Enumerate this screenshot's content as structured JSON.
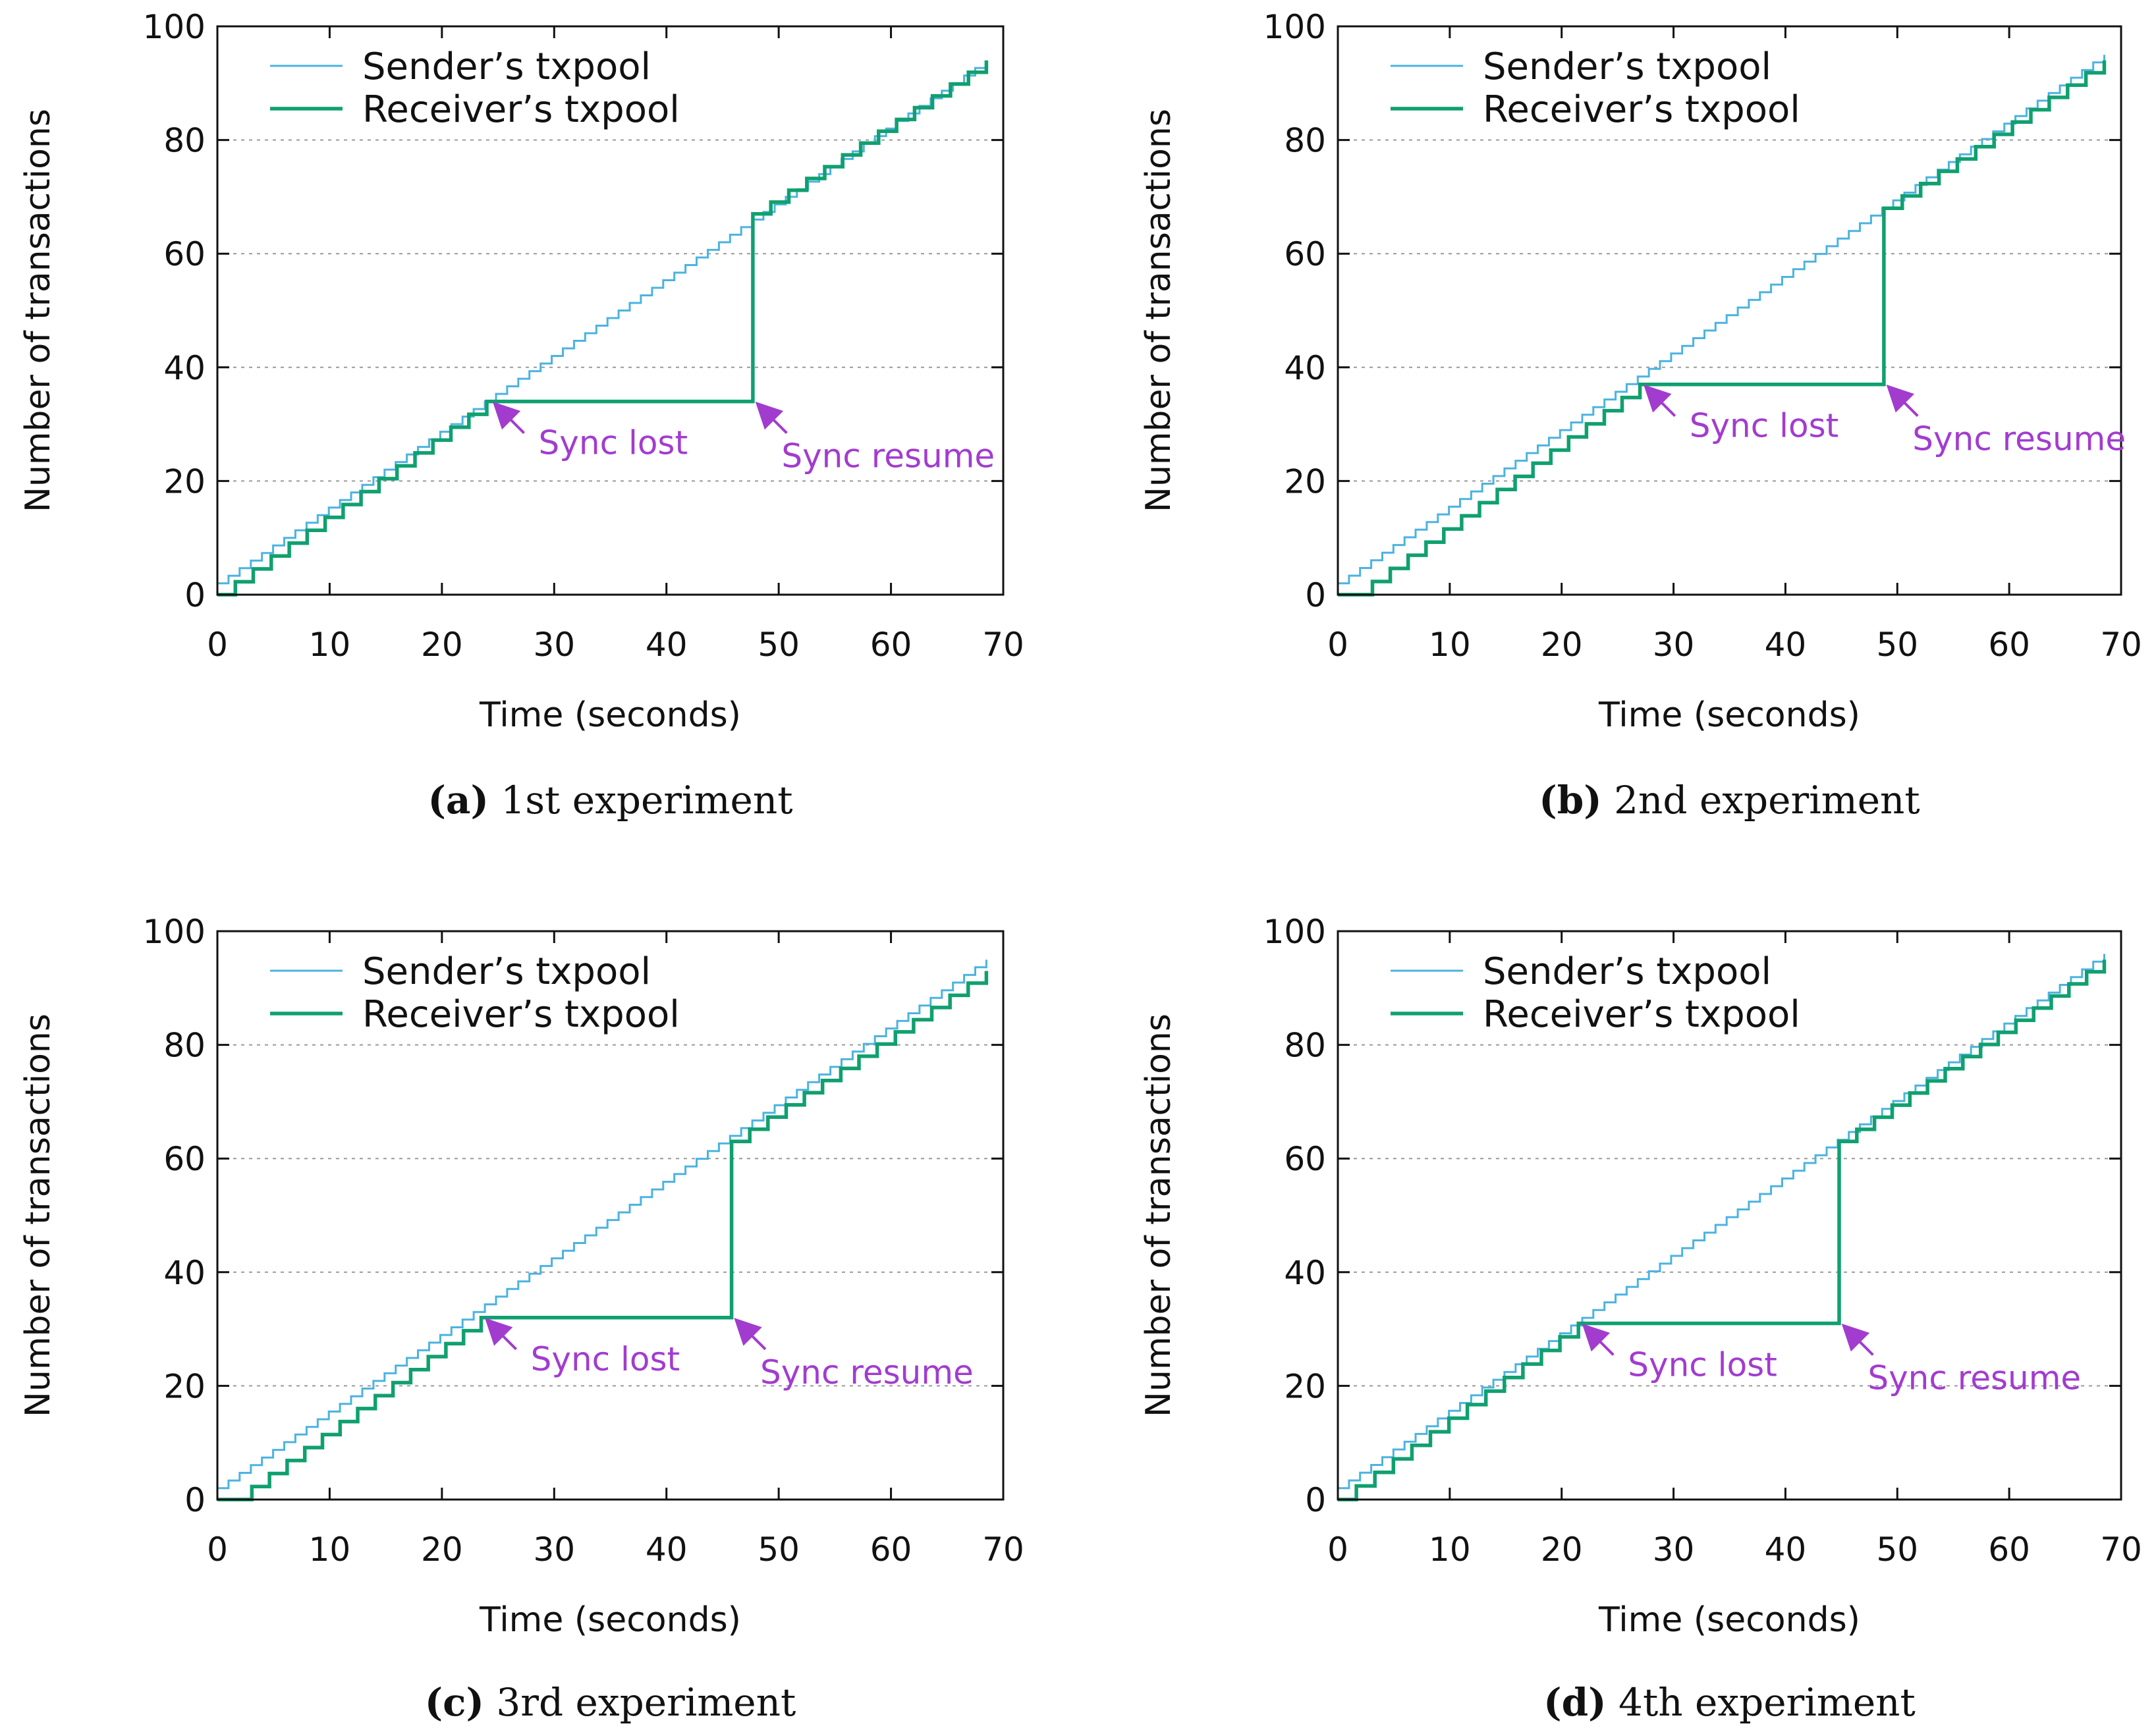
{
  "colors": {
    "sender": "#4bb3e0",
    "receiver": "#10a070",
    "annotation": "#a23ccf",
    "grid": "#9a9a9a",
    "axis": "#111111"
  },
  "legend": {
    "sender_label": "Sender’s txpool",
    "receiver_label": "Receiver’s txpool"
  },
  "chart_data": [
    {
      "type": "line",
      "subtitle_letter": "(a)",
      "subtitle_text": " 1st experiment",
      "xlabel": "Time (seconds)",
      "ylabel": "Number of transactions",
      "xlim": [
        0,
        70
      ],
      "ylim": [
        0,
        100
      ],
      "xticks": [
        0,
        10,
        20,
        30,
        40,
        50,
        60,
        70
      ],
      "yticks": [
        0,
        20,
        40,
        60,
        80,
        100
      ],
      "grid": "horizontal dashed",
      "legend_position": "top-left",
      "series": [
        {
          "name": "Sender’s txpool",
          "step": true,
          "x": [
            0,
            68.5
          ],
          "y": [
            2,
            94
          ]
        },
        {
          "name": "Receiver’s txpool",
          "step": true,
          "x": [
            0,
            24,
            24,
            47.7,
            47.7,
            68.5
          ],
          "y": [
            0,
            34,
            34,
            34,
            67,
            94
          ]
        }
      ],
      "annotations": [
        {
          "text": "Sync lost",
          "x": 24.5,
          "y": 34
        },
        {
          "text": "Sync resume",
          "x": 47.9,
          "y": 34
        }
      ]
    },
    {
      "type": "line",
      "subtitle_letter": "(b)",
      "subtitle_text": " 2nd experiment",
      "xlabel": "Time (seconds)",
      "ylabel": "Number of transactions",
      "xlim": [
        0,
        70
      ],
      "ylim": [
        0,
        100
      ],
      "xticks": [
        0,
        10,
        20,
        30,
        40,
        50,
        60,
        70
      ],
      "yticks": [
        0,
        20,
        40,
        60,
        80,
        100
      ],
      "grid": "horizontal dashed",
      "legend_position": "top-left",
      "series": [
        {
          "name": "Sender’s txpool",
          "step": true,
          "x": [
            0,
            68.5
          ],
          "y": [
            2,
            95
          ]
        },
        {
          "name": "Receiver’s txpool",
          "step": true,
          "x": [
            0,
            1.5,
            27,
            27,
            48.8,
            48.8,
            68.5
          ],
          "y": [
            0,
            0,
            37,
            37,
            37,
            68,
            94
          ]
        }
      ],
      "annotations": [
        {
          "text": "Sync lost",
          "x": 27.3,
          "y": 37
        },
        {
          "text": "Sync resume",
          "x": 49,
          "y": 37
        }
      ]
    },
    {
      "type": "line",
      "subtitle_letter": "(c)",
      "subtitle_text": " 3rd experiment",
      "xlabel": "Time (seconds)",
      "ylabel": "Number of transactions",
      "xlim": [
        0,
        70
      ],
      "ylim": [
        0,
        100
      ],
      "xticks": [
        0,
        10,
        20,
        30,
        40,
        50,
        60,
        70
      ],
      "yticks": [
        0,
        20,
        40,
        60,
        80,
        100
      ],
      "grid": "horizontal dashed",
      "legend_position": "top-left",
      "series": [
        {
          "name": "Sender’s txpool",
          "step": true,
          "x": [
            0,
            68.5
          ],
          "y": [
            2,
            95
          ]
        },
        {
          "name": "Receiver’s txpool",
          "step": true,
          "x": [
            0,
            1.5,
            23.5,
            23.5,
            45.8,
            45.8,
            68.5
          ],
          "y": [
            0,
            0,
            32,
            32,
            32,
            63,
            93
          ]
        }
      ],
      "annotations": [
        {
          "text": "Sync lost",
          "x": 23.8,
          "y": 32
        },
        {
          "text": "Sync resume",
          "x": 46,
          "y": 32
        }
      ]
    },
    {
      "type": "line",
      "subtitle_letter": "(d)",
      "subtitle_text": " 4th experiment",
      "xlabel": "Time (seconds)",
      "ylabel": "Number of transactions",
      "xlim": [
        0,
        70
      ],
      "ylim": [
        0,
        100
      ],
      "xticks": [
        0,
        10,
        20,
        30,
        40,
        50,
        60,
        70
      ],
      "yticks": [
        0,
        20,
        40,
        60,
        80,
        100
      ],
      "grid": "horizontal dashed",
      "legend_position": "top-left",
      "series": [
        {
          "name": "Sender’s txpool",
          "step": true,
          "x": [
            0,
            68.5
          ],
          "y": [
            2,
            96
          ]
        },
        {
          "name": "Receiver’s txpool",
          "step": true,
          "x": [
            0,
            21.5,
            21.5,
            44.8,
            44.8,
            68.5
          ],
          "y": [
            0,
            31,
            31,
            31,
            63,
            95
          ]
        }
      ],
      "annotations": [
        {
          "text": "Sync lost",
          "x": 21.8,
          "y": 31
        },
        {
          "text": "Sync resume",
          "x": 45,
          "y": 31
        }
      ]
    }
  ]
}
